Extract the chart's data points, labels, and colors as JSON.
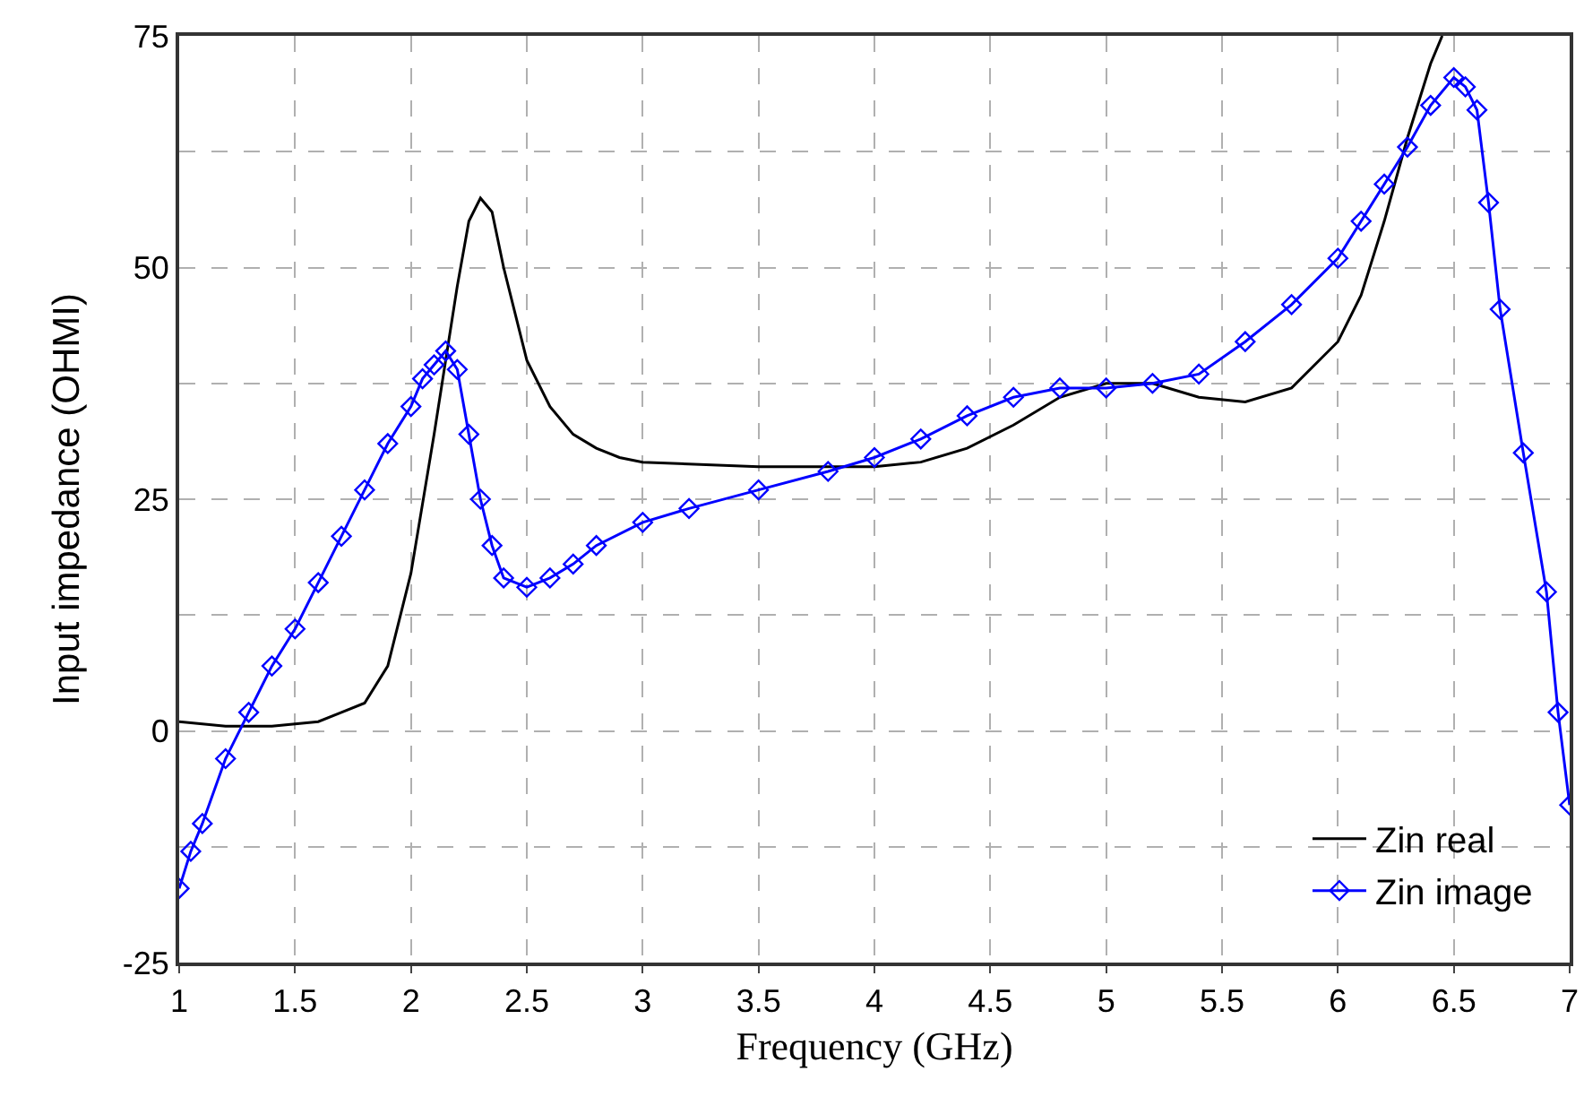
{
  "chart_data": {
    "type": "line",
    "xlabel": "Frequency (GHz)",
    "ylabel": "Input impedance (OHMI)",
    "xlim": [
      1,
      7
    ],
    "xticks": [
      1,
      1.5,
      2,
      2.5,
      3,
      3.5,
      4,
      4.5,
      5,
      5.5,
      6,
      6.5,
      7
    ],
    "ylim": [
      -25,
      75
    ],
    "yticks": [
      -25,
      {
        "value": -12.5,
        "label": null
      },
      0,
      {
        "value": 12.5,
        "label": null
      },
      25,
      {
        "value": 37.5,
        "label": null
      },
      50,
      {
        "value": 62.5,
        "label": null
      },
      75
    ],
    "grid": true,
    "legend": "bottom right",
    "series": [
      {
        "name": "Zin real",
        "color": "#000000",
        "marker": "none",
        "x": [
          1,
          1.2,
          1.4,
          1.6,
          1.7,
          1.8,
          1.9,
          2.0,
          2.1,
          2.2,
          2.25,
          2.3,
          2.35,
          2.4,
          2.5,
          2.6,
          2.7,
          2.8,
          2.9,
          3.0,
          3.5,
          4.0,
          4.2,
          4.4,
          4.6,
          4.8,
          5.0,
          5.2,
          5.4,
          5.6,
          5.8,
          6.0,
          6.1,
          6.2,
          6.3,
          6.4,
          6.45
        ],
        "values": [
          1,
          0.5,
          0.5,
          1,
          2,
          3,
          7,
          17,
          32,
          48,
          55,
          57.5,
          56,
          50,
          40,
          35,
          32,
          30.5,
          29.5,
          29,
          28.5,
          28.5,
          29,
          30.5,
          33,
          36,
          37.5,
          37.5,
          36,
          35.5,
          37,
          42,
          47,
          55,
          64,
          72,
          75
        ]
      },
      {
        "name": "Zin image",
        "color": "#0000ff",
        "marker": "diamond",
        "x": [
          1,
          1.05,
          1.1,
          1.2,
          1.3,
          1.4,
          1.5,
          1.6,
          1.7,
          1.8,
          1.9,
          2.0,
          2.05,
          2.1,
          2.15,
          2.2,
          2.25,
          2.3,
          2.35,
          2.4,
          2.5,
          2.6,
          2.7,
          2.8,
          3.0,
          3.2,
          3.5,
          3.8,
          4.0,
          4.2,
          4.4,
          4.6,
          4.8,
          5.0,
          5.2,
          5.4,
          5.6,
          5.8,
          6.0,
          6.1,
          6.2,
          6.3,
          6.4,
          6.5,
          6.55,
          6.6,
          6.65,
          6.7,
          6.8,
          6.9,
          6.95,
          7.0
        ],
        "values": [
          -17,
          -13,
          -10,
          -3,
          2,
          7,
          11,
          16,
          21,
          26,
          31,
          35,
          38,
          39.5,
          41,
          39,
          32,
          25,
          20,
          16.5,
          15.5,
          16.5,
          18,
          20,
          22.5,
          24,
          26,
          28,
          29.5,
          31.5,
          34,
          36,
          37,
          37,
          37.5,
          38.5,
          42,
          46,
          51,
          55,
          59,
          63,
          67.5,
          70.5,
          69.5,
          67,
          57,
          45.5,
          30,
          15,
          2,
          -8
        ]
      }
    ]
  }
}
